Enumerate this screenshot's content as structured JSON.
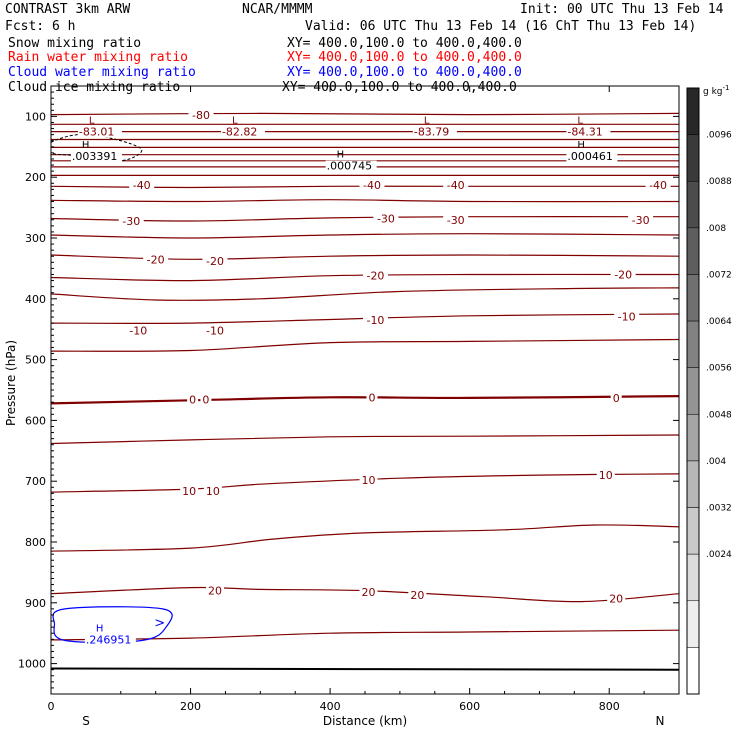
{
  "header": {
    "model": "CONTRAST  3km ARW",
    "org": "NCAR/MMMM",
    "init": "Init: 00 UTC Thu 13 Feb 14",
    "fcst": "Fcst:    6 h",
    "valid": "Valid: 06 UTC Thu 13 Feb 14 (16 ChT Thu 13 Feb 14)"
  },
  "fields": [
    {
      "name": "Snow mixing ratio",
      "xy": "XY= 400.0,100.0 to 400.0,400.0",
      "color": "#000000"
    },
    {
      "name": "Rain water mixing ratio",
      "xy": "XY= 400.0,100.0 to 400.0,400.0",
      "color": "#ff0000"
    },
    {
      "name": "Cloud water mixing ratio",
      "xy": "XY= 400.0,100.0 to 400.0,400.0",
      "color": "#0000ff"
    },
    {
      "name": "Cloud ice mixing ratio",
      "xy": "XY= 400.0,100.0 to 400.0,400.0",
      "color": "#000000"
    }
  ],
  "chart_data": {
    "type": "contour",
    "xlabel": "Distance (km)",
    "ylabel": "Pressure (hPa)",
    "xlim": [
      0,
      900
    ],
    "ylim": [
      1050,
      50
    ],
    "x_ticks": [
      0,
      200,
      400,
      600,
      800
    ],
    "y_ticks": [
      100,
      200,
      300,
      400,
      500,
      600,
      700,
      800,
      900,
      1000
    ],
    "x_end_labels": {
      "left": "S",
      "right": "N"
    },
    "colorbar": {
      "unit": "g kg",
      "unit_exp": "-1",
      "labels": [
        ".0096",
        ".0088",
        ".008",
        ".0072",
        ".0064",
        ".0056",
        ".0048",
        ".004",
        ".0032",
        ".0024"
      ]
    },
    "contour_color": "#800000",
    "contour_levels_labeled": [
      -80,
      -40,
      -30,
      -20,
      -10,
      0,
      10,
      20
    ],
    "isotherms": [
      {
        "pts": [
          [
            0,
            97
          ],
          [
            300,
            95
          ],
          [
            600,
            97
          ],
          [
            900,
            95
          ]
        ]
      },
      {
        "pts": [
          [
            0,
            113
          ],
          [
            900,
            113
          ]
        ]
      },
      {
        "pts": [
          [
            0,
            125
          ],
          [
            900,
            125
          ]
        ]
      },
      {
        "pts": [
          [
            0,
            138
          ],
          [
            900,
            138
          ]
        ]
      },
      {
        "pts": [
          [
            0,
            151
          ],
          [
            900,
            151
          ]
        ]
      },
      {
        "pts": [
          [
            0,
            163
          ],
          [
            900,
            163
          ]
        ]
      },
      {
        "pts": [
          [
            0,
            173
          ],
          [
            900,
            173
          ]
        ]
      },
      {
        "pts": [
          [
            0,
            183
          ],
          [
            900,
            183
          ]
        ]
      },
      {
        "pts": [
          [
            0,
            197
          ],
          [
            900,
            197
          ]
        ]
      },
      {
        "pts": [
          [
            0,
            215
          ],
          [
            200,
            217
          ],
          [
            400,
            215
          ],
          [
            600,
            215
          ],
          [
            900,
            215
          ]
        ]
      },
      {
        "pts": [
          [
            0,
            238
          ],
          [
            200,
            240
          ],
          [
            400,
            237
          ],
          [
            600,
            240
          ],
          [
            900,
            240
          ]
        ]
      },
      {
        "pts": [
          [
            0,
            268
          ],
          [
            200,
            272
          ],
          [
            400,
            267
          ],
          [
            600,
            265
          ],
          [
            900,
            265
          ]
        ]
      },
      {
        "pts": [
          [
            0,
            295
          ],
          [
            200,
            300
          ],
          [
            400,
            295
          ],
          [
            600,
            293
          ],
          [
            900,
            295
          ]
        ]
      },
      {
        "pts": [
          [
            0,
            328
          ],
          [
            200,
            335
          ],
          [
            400,
            330
          ],
          [
            600,
            328
          ],
          [
            900,
            330
          ]
        ]
      },
      {
        "pts": [
          [
            0,
            365
          ],
          [
            200,
            370
          ],
          [
            400,
            362
          ],
          [
            600,
            360
          ],
          [
            900,
            360
          ]
        ]
      },
      {
        "pts": [
          [
            0,
            392
          ],
          [
            150,
            402
          ],
          [
            300,
            400
          ],
          [
            500,
            388
          ],
          [
            750,
            383
          ],
          [
            900,
            382
          ]
        ]
      },
      {
        "pts": [
          [
            0,
            440
          ],
          [
            200,
            440
          ],
          [
            400,
            434
          ],
          [
            600,
            428
          ],
          [
            900,
            425
          ]
        ]
      },
      {
        "pts": [
          [
            0,
            486
          ],
          [
            200,
            485
          ],
          [
            400,
            472
          ],
          [
            600,
            470
          ],
          [
            900,
            467
          ]
        ]
      },
      {
        "pts": [
          [
            0,
            572
          ],
          [
            200,
            567
          ],
          [
            400,
            562
          ],
          [
            600,
            563
          ],
          [
            900,
            560
          ]
        ]
      },
      {
        "pts": [
          [
            0,
            638
          ],
          [
            200,
            632
          ],
          [
            400,
            627
          ],
          [
            600,
            626
          ],
          [
            900,
            624
          ]
        ]
      },
      {
        "pts": [
          [
            0,
            718
          ],
          [
            200,
            713
          ],
          [
            300,
            705
          ],
          [
            500,
            695
          ],
          [
            700,
            690
          ],
          [
            900,
            688
          ]
        ]
      },
      {
        "pts": [
          [
            0,
            815
          ],
          [
            200,
            810
          ],
          [
            320,
            795
          ],
          [
            450,
            785
          ],
          [
            650,
            780
          ],
          [
            780,
            772
          ],
          [
            900,
            775
          ]
        ]
      },
      {
        "pts": [
          [
            0,
            885
          ],
          [
            200,
            875
          ],
          [
            300,
            878
          ],
          [
            450,
            880
          ],
          [
            620,
            890
          ],
          [
            760,
            898
          ],
          [
            900,
            885
          ]
        ]
      },
      {
        "pts": [
          [
            0,
            961
          ],
          [
            200,
            958
          ],
          [
            400,
            950
          ],
          [
            600,
            948
          ],
          [
            900,
            945
          ]
        ]
      }
    ],
    "thick_contours": [
      {
        "pts": [
          [
            0,
            1008
          ],
          [
            900,
            1010
          ]
        ]
      }
    ],
    "contour_labels": [
      {
        "x": 215,
        "p": 98,
        "text": "-80"
      },
      {
        "x": 130,
        "p": 213,
        "text": "-40"
      },
      {
        "x": 460,
        "p": 213,
        "text": "-40"
      },
      {
        "x": 580,
        "p": 213,
        "text": "-40"
      },
      {
        "x": 870,
        "p": 213,
        "text": "-40"
      },
      {
        "x": 115,
        "p": 272,
        "text": "-30"
      },
      {
        "x": 480,
        "p": 268,
        "text": "-30"
      },
      {
        "x": 580,
        "p": 270,
        "text": "-30"
      },
      {
        "x": 845,
        "p": 270,
        "text": "-30"
      },
      {
        "x": 150,
        "p": 335,
        "text": "-20"
      },
      {
        "x": 235,
        "p": 338,
        "text": "-20"
      },
      {
        "x": 465,
        "p": 362,
        "text": "-20"
      },
      {
        "x": 820,
        "p": 360,
        "text": "-20"
      },
      {
        "x": 125,
        "p": 452,
        "text": "-10"
      },
      {
        "x": 235,
        "p": 452,
        "text": "-10"
      },
      {
        "x": 465,
        "p": 435,
        "text": "-10"
      },
      {
        "x": 825,
        "p": 429,
        "text": "-10"
      },
      {
        "x": 203,
        "p": 566,
        "text": "0"
      },
      {
        "x": 222,
        "p": 566,
        "text": "0"
      },
      {
        "x": 460,
        "p": 562,
        "text": "0"
      },
      {
        "x": 810,
        "p": 563,
        "text": "0"
      },
      {
        "x": 198,
        "p": 716,
        "text": "10"
      },
      {
        "x": 232,
        "p": 716,
        "text": "10"
      },
      {
        "x": 455,
        "p": 698,
        "text": "10"
      },
      {
        "x": 795,
        "p": 690,
        "text": "10"
      },
      {
        "x": 235,
        "p": 880,
        "text": "20"
      },
      {
        "x": 455,
        "p": 882,
        "text": "20"
      },
      {
        "x": 525,
        "p": 887,
        "text": "20"
      },
      {
        "x": 810,
        "p": 893,
        "text": "20"
      }
    ],
    "extrema": [
      {
        "x": 40,
        "p": 97,
        "mark": "L",
        "value": "-83.01",
        "color": "#800000"
      },
      {
        "x": 245,
        "p": 97,
        "mark": "L",
        "value": "-82.82",
        "color": "#800000"
      },
      {
        "x": 520,
        "p": 97,
        "mark": "L",
        "value": "-83.79",
        "color": "#800000"
      },
      {
        "x": 740,
        "p": 97,
        "mark": "L",
        "value": "-84.31",
        "color": "#800000"
      },
      {
        "x": 30,
        "p": 137,
        "mark": "H",
        "value": ".003391",
        "color": "#000000"
      },
      {
        "x": 395,
        "p": 153,
        "mark": "H",
        "value": ".000745",
        "color": "#000000"
      },
      {
        "x": 740,
        "p": 137,
        "mark": "H",
        "value": ".000461",
        "color": "#000000"
      },
      {
        "x": 50,
        "p": 932,
        "mark": "H",
        "value": ".246951",
        "color": "#0000ff"
      }
    ],
    "ice_contour": {
      "pts": [
        [
          0,
          143
        ],
        [
          40,
          130
        ],
        [
          90,
          137
        ],
        [
          130,
          155
        ],
        [
          100,
          173
        ],
        [
          40,
          165
        ],
        [
          0,
          160
        ]
      ]
    },
    "cloud_water_contour": {
      "pts": [
        [
          20,
          910
        ],
        [
          160,
          910
        ],
        [
          165,
          940
        ],
        [
          130,
          962
        ],
        [
          20,
          962
        ],
        [
          5,
          935
        ]
      ]
    },
    "cloud_water_label": ">"
  }
}
